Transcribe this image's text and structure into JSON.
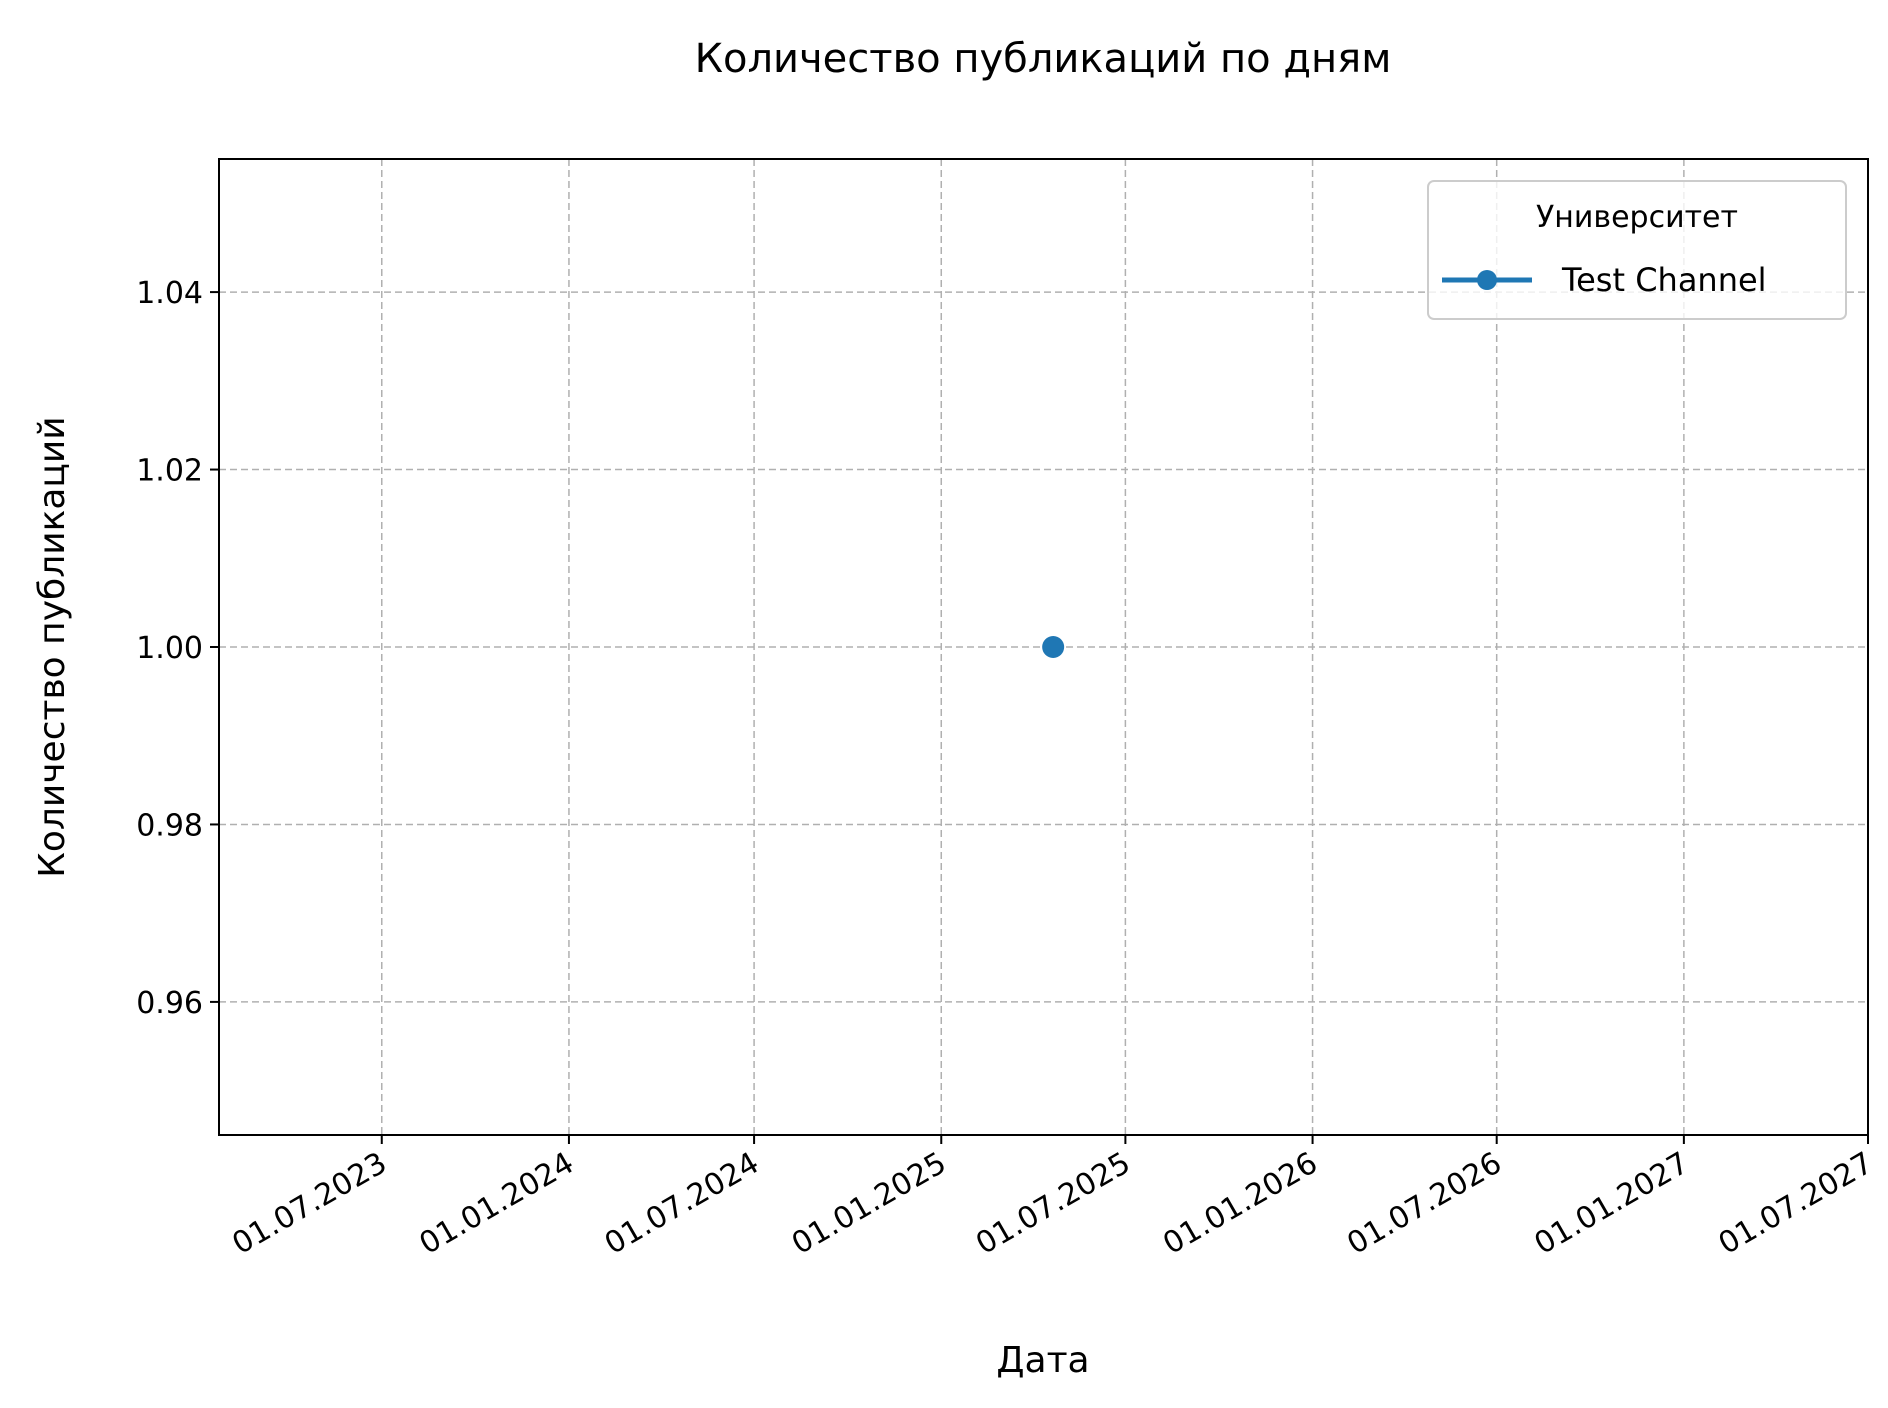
{
  "chart_data": {
    "type": "line",
    "title": "Количество публикаций по дням",
    "xlabel": "Дата",
    "ylabel": "Количество публикаций",
    "x_ticks": [
      "01.07.2023",
      "01.01.2024",
      "01.07.2024",
      "01.01.2025",
      "01.07.2025",
      "01.01.2026",
      "01.07.2026",
      "01.01.2027",
      "01.07.2027"
    ],
    "xlim": [
      "2023-01-22",
      "2027-07-01"
    ],
    "y_ticks": [
      "0.96",
      "0.98",
      "1.00",
      "1.02",
      "1.04"
    ],
    "ylim": [
      0.945,
      1.055
    ],
    "grid": true,
    "legend": {
      "title": "Университет",
      "position": "top-right"
    },
    "series": [
      {
        "name": "Test Channel",
        "color": "#1f77b4",
        "marker": "circle",
        "points": [
          {
            "x": "2025-04-21",
            "y": 1.0
          }
        ]
      }
    ]
  }
}
